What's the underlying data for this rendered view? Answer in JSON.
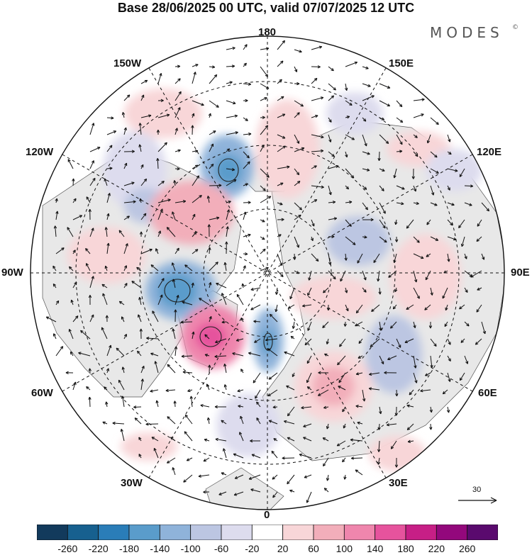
{
  "title": "Base 28/06/2025 00 UTC, valid 07/07/2025 12 UTC",
  "brand": {
    "name": "MODES",
    "mark": "©"
  },
  "longitude_labels": [
    {
      "text": "180",
      "pos": "top"
    },
    {
      "text": "150W",
      "pos": "top-left"
    },
    {
      "text": "150E",
      "pos": "top-right"
    },
    {
      "text": "120W",
      "pos": "upper-left"
    },
    {
      "text": "120E",
      "pos": "upper-right"
    },
    {
      "text": "90W",
      "pos": "left"
    },
    {
      "text": "90E",
      "pos": "right"
    },
    {
      "text": "60W",
      "pos": "lower-left"
    },
    {
      "text": "60E",
      "pos": "lower-right"
    },
    {
      "text": "30W",
      "pos": "bottom-left"
    },
    {
      "text": "30E",
      "pos": "bottom-right"
    },
    {
      "text": "0",
      "pos": "bottom"
    }
  ],
  "vector_reference": {
    "value": "30"
  },
  "colorbar": {
    "ticks": [
      "-260",
      "-220",
      "-180",
      "-140",
      "-100",
      "-60",
      "-20",
      "20",
      "60",
      "100",
      "140",
      "180",
      "220",
      "260"
    ],
    "colors": [
      "#123a5c",
      "#17608f",
      "#2a7db8",
      "#5a9ccb",
      "#8fb3da",
      "#bcc6e2",
      "#dddcee",
      "#ffffff",
      "#f8d6d8",
      "#f2aeba",
      "#ef86ad",
      "#e6539d",
      "#c71f86",
      "#93087c",
      "#5a0a6e"
    ]
  },
  "anomaly_colors": {
    "land": "#e9e9e9",
    "ocean": "#ffffff"
  }
}
